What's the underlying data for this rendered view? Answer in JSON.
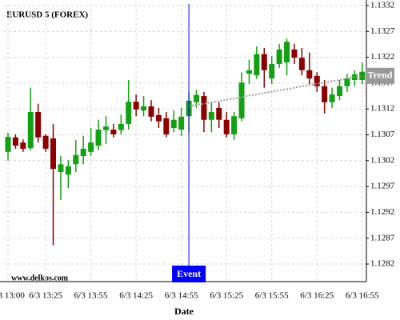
{
  "chart_data": {
    "type": "candlestick",
    "title": "EURUSD 5 (FOREX)",
    "watermark": "www.delkos.com",
    "x_label": "Date",
    "categories": [
      "6/3 13:00",
      null,
      null,
      null,
      null,
      "6/3 13:25",
      null,
      null,
      null,
      null,
      null,
      "6/3 13:55",
      null,
      null,
      null,
      null,
      null,
      "6/3 14:25",
      null,
      null,
      null,
      null,
      null,
      "6/3 14:55",
      null,
      null,
      null,
      null,
      null,
      "6/3 15:25",
      null,
      null,
      null,
      null,
      null,
      "6/3 15:55",
      null,
      null,
      null,
      null,
      null,
      "6/3 16:25",
      null,
      null,
      null,
      null,
      null,
      "6/3 16:55"
    ],
    "open": [
      1.13037,
      1.13065,
      1.13055,
      1.13044,
      1.13114,
      1.13068,
      1.13063,
      1.12998,
      1.12993,
      1.13013,
      1.13029,
      1.13037,
      1.13049,
      1.13079,
      1.1308,
      1.13079,
      1.13091,
      1.13134,
      1.13117,
      1.13125,
      1.13108,
      1.13102,
      1.13083,
      1.1308,
      1.13106,
      1.13133,
      1.13145,
      1.13099,
      1.13122,
      1.13099,
      1.13071,
      1.13102,
      1.13188,
      1.13185,
      1.13226,
      1.13179,
      1.13207,
      1.1321,
      1.13235,
      1.13219,
      1.13195,
      1.13184,
      1.13164,
      1.13133,
      1.13145,
      1.13164,
      1.13176,
      1.13176
    ],
    "high": [
      1.13074,
      1.13071,
      1.13061,
      1.13161,
      1.1313,
      1.13071,
      1.13091,
      1.13029,
      1.13021,
      1.1306,
      1.13068,
      1.13083,
      1.13099,
      1.13106,
      1.13091,
      1.13109,
      1.13176,
      1.13148,
      1.13145,
      1.13137,
      1.13122,
      1.13114,
      1.13117,
      1.13122,
      1.13153,
      1.13157,
      1.13153,
      1.13133,
      1.13133,
      1.13114,
      1.13114,
      1.13191,
      1.13215,
      1.13241,
      1.13238,
      1.13222,
      1.13246,
      1.13256,
      1.13246,
      1.13238,
      1.13229,
      1.13191,
      1.13176,
      1.13161,
      1.13176,
      1.13188,
      1.13195,
      1.1321
    ],
    "low": [
      1.1302,
      1.13043,
      1.13037,
      1.1304,
      1.13055,
      1.13037,
      1.12856,
      1.12944,
      1.12967,
      1.12998,
      1.13013,
      1.13029,
      1.1304,
      1.13052,
      1.13065,
      1.13071,
      1.1308,
      1.13106,
      1.13106,
      1.13096,
      1.13083,
      1.13065,
      1.13075,
      1.13068,
      1.13075,
      1.13122,
      1.13075,
      1.13075,
      1.13083,
      1.13065,
      1.1306,
      1.13096,
      1.13168,
      1.13178,
      1.13161,
      1.13168,
      1.13199,
      1.13185,
      1.13207,
      1.13185,
      1.13168,
      1.13153,
      1.13111,
      1.13122,
      1.13137,
      1.13153,
      1.13164,
      1.13168
    ],
    "close": [
      1.13066,
      1.13049,
      1.13043,
      1.13114,
      1.13065,
      1.13043,
      1.13004,
      1.13013,
      1.13009,
      1.13031,
      1.13043,
      1.13055,
      1.1308,
      1.13086,
      1.13071,
      1.13091,
      1.13134,
      1.13119,
      1.13125,
      1.13105,
      1.13096,
      1.13071,
      1.13099,
      1.13105,
      1.13136,
      1.13147,
      1.13099,
      1.13114,
      1.13099,
      1.13071,
      1.13106,
      1.13171,
      1.13195,
      1.13226,
      1.13195,
      1.13207,
      1.13235,
      1.1325,
      1.13219,
      1.13195,
      1.13179,
      1.13164,
      1.13133,
      1.13148,
      1.13164,
      1.13179,
      1.13187,
      1.13192
    ],
    "up_color": "#13a113",
    "down_color": "#8b0000",
    "trend": {
      "name": "Trend",
      "color": "#999999",
      "values": [
        null,
        null,
        null,
        null,
        null,
        null,
        null,
        null,
        null,
        null,
        null,
        null,
        null,
        null,
        null,
        null,
        null,
        null,
        null,
        null,
        null,
        null,
        null,
        null,
        1.13125,
        1.13128,
        1.1313,
        1.13133,
        1.13135,
        1.13138,
        1.1314,
        1.13143,
        1.13146,
        1.13148,
        1.13151,
        1.13153,
        1.13156,
        1.13158,
        1.13161,
        1.13164,
        1.13166,
        1.13169,
        1.13171,
        1.13174,
        1.13176,
        1.13179,
        1.13182,
        1.13184
      ]
    },
    "event": {
      "label": "Event",
      "category_index": 24,
      "color": "#0000ff"
    },
    "ylim": [
      1.12786,
      1.13323
    ],
    "yticks": [
      1.1282,
      1.1287,
      1.1292,
      1.1297,
      1.1302,
      1.1307,
      1.1312,
      1.1317,
      1.1322,
      1.1327,
      1.1332
    ],
    "grid": true
  }
}
